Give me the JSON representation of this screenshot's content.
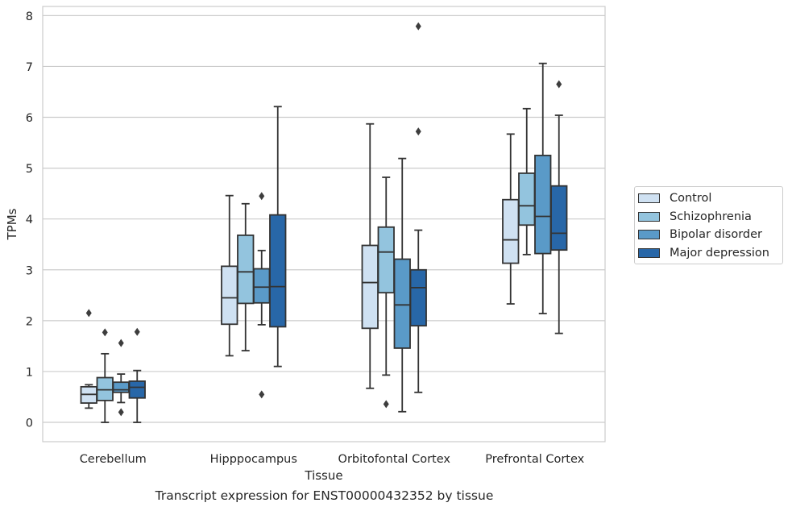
{
  "chart_data": {
    "type": "boxplot",
    "xlabel": "Tissue",
    "ylabel": "TPMs",
    "ylim": [
      -0.38,
      8.18
    ],
    "yticks": [
      0,
      1,
      2,
      3,
      4,
      5,
      6,
      7,
      8
    ],
    "grid": true,
    "legend_position": "right",
    "categories": [
      "Cerebellum",
      "Hipppocampus",
      "Orbitofontal Cortex",
      "Prefrontal Cortex"
    ],
    "series": [
      {
        "name": "Control",
        "color": "#cfe1f2",
        "boxes": [
          {
            "whislo": 0.28,
            "q1": 0.38,
            "med": 0.55,
            "q3": 0.7,
            "whishi": 0.74,
            "fliers": [
              2.15
            ]
          },
          {
            "whislo": 1.31,
            "q1": 1.93,
            "med": 2.45,
            "q3": 3.07,
            "whishi": 4.46,
            "fliers": []
          },
          {
            "whislo": 0.67,
            "q1": 1.85,
            "med": 2.75,
            "q3": 3.48,
            "whishi": 5.87,
            "fliers": []
          },
          {
            "whislo": 2.33,
            "q1": 3.13,
            "med": 3.59,
            "q3": 4.38,
            "whishi": 5.67,
            "fliers": []
          }
        ]
      },
      {
        "name": "Schizophrenia",
        "color": "#93c4de",
        "boxes": [
          {
            "whislo": 0.0,
            "q1": 0.43,
            "med": 0.64,
            "q3": 0.88,
            "whishi": 1.35,
            "fliers": [
              1.77
            ]
          },
          {
            "whislo": 1.41,
            "q1": 2.34,
            "med": 2.96,
            "q3": 3.68,
            "whishi": 4.3,
            "fliers": []
          },
          {
            "whislo": 0.93,
            "q1": 2.55,
            "med": 3.35,
            "q3": 3.84,
            "whishi": 4.82,
            "fliers": [
              0.36
            ]
          },
          {
            "whislo": 3.3,
            "q1": 3.88,
            "med": 4.26,
            "q3": 4.9,
            "whishi": 6.17,
            "fliers": []
          }
        ]
      },
      {
        "name": "Bipolar disorder",
        "color": "#5a9ac8",
        "boxes": [
          {
            "whislo": 0.39,
            "q1": 0.59,
            "med": 0.64,
            "q3": 0.79,
            "whishi": 0.95,
            "fliers": [
              1.56,
              0.2
            ]
          },
          {
            "whislo": 1.92,
            "q1": 2.35,
            "med": 2.66,
            "q3": 3.02,
            "whishi": 3.38,
            "fliers": [
              4.45,
              0.55
            ]
          },
          {
            "whislo": 0.21,
            "q1": 1.46,
            "med": 2.31,
            "q3": 3.21,
            "whishi": 5.19,
            "fliers": []
          },
          {
            "whislo": 2.14,
            "q1": 3.32,
            "med": 4.05,
            "q3": 5.25,
            "whishi": 7.06,
            "fliers": []
          }
        ]
      },
      {
        "name": "Major depression",
        "color": "#2867a8",
        "boxes": [
          {
            "whislo": 0.0,
            "q1": 0.48,
            "med": 0.69,
            "q3": 0.81,
            "whishi": 1.02,
            "fliers": [
              1.78
            ]
          },
          {
            "whislo": 1.1,
            "q1": 1.88,
            "med": 2.67,
            "q3": 4.08,
            "whishi": 6.21,
            "fliers": []
          },
          {
            "whislo": 0.59,
            "q1": 1.9,
            "med": 2.65,
            "q3": 3.0,
            "whishi": 3.78,
            "fliers": [
              5.72,
              7.79
            ]
          },
          {
            "whislo": 1.75,
            "q1": 3.39,
            "med": 3.72,
            "q3": 4.65,
            "whishi": 6.04,
            "fliers": [
              6.65
            ]
          }
        ]
      }
    ]
  },
  "caption": "Transcript expression for ENST00000432352 by tissue",
  "colors": {
    "grid": "#cccccc",
    "box_edge": "#333333",
    "frame": "#cccccc"
  }
}
